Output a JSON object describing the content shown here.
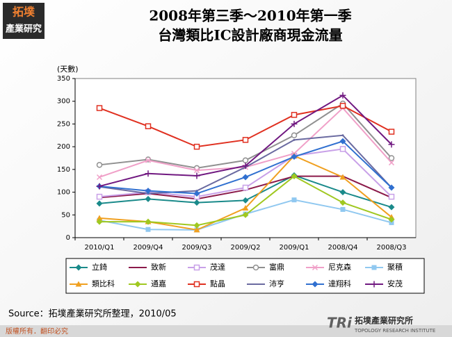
{
  "page": {
    "logo_top": "拓墣",
    "logo_bottom": "產業研究",
    "source": "Source：拓墣產業研究所整理，2010/05",
    "footer": "版權所有．翻印必究",
    "brand_mark": "TRi",
    "brand": "拓墣產業研究所",
    "brand_en": "TOPOLOGY RESEARCH INSTITUTE"
  },
  "chart_data": {
    "type": "line",
    "title": "2008年第三季～2010年第一季",
    "subtitle": "台灣類比IC設計廠商現金流量",
    "y_label": "(天數)",
    "categories": [
      "2010/Q1",
      "2009/Q4",
      "2009/Q3",
      "2009/Q2",
      "2009/Q1",
      "2008/Q4",
      "2008/Q3"
    ],
    "ylim": [
      0,
      350
    ],
    "yticks": [
      0,
      50,
      100,
      150,
      200,
      250,
      300,
      350
    ],
    "series": [
      {
        "name": "立錡",
        "color": "#1a8a8a",
        "marker": "diamond",
        "values": [
          75,
          85,
          77,
          82,
          137,
          100,
          67
        ]
      },
      {
        "name": "致新",
        "color": "#8b1a4a",
        "marker": "none",
        "values": [
          88,
          97,
          85,
          105,
          135,
          135,
          88
        ]
      },
      {
        "name": "茂達",
        "color": "#c8a0e8",
        "marker": "square-open",
        "values": [
          90,
          100,
          90,
          110,
          180,
          195,
          90
        ]
      },
      {
        "name": "富鼎",
        "color": "#909090",
        "marker": "circle-open",
        "values": [
          160,
          172,
          153,
          170,
          225,
          295,
          175
        ]
      },
      {
        "name": "尼克森",
        "color": "#f0a0c8",
        "marker": "x",
        "values": [
          133,
          170,
          148,
          155,
          185,
          285,
          165
        ]
      },
      {
        "name": "聚積",
        "color": "#90c8f0",
        "marker": "square",
        "values": [
          38,
          18,
          17,
          52,
          83,
          62,
          33
        ]
      },
      {
        "name": "類比科",
        "color": "#f0a020",
        "marker": "triangle",
        "values": [
          43,
          35,
          17,
          65,
          180,
          133,
          45
        ]
      },
      {
        "name": "通嘉",
        "color": "#a0c820",
        "marker": "diamond",
        "values": [
          35,
          35,
          27,
          50,
          135,
          77,
          40
        ]
      },
      {
        "name": "點晶",
        "color": "#e03020",
        "marker": "square-open",
        "values": [
          285,
          245,
          200,
          215,
          270,
          290,
          233
        ]
      },
      {
        "name": "沛亨",
        "color": "#6a6aa0",
        "marker": "none",
        "values": [
          112,
          97,
          103,
          155,
          215,
          225,
          110
        ]
      },
      {
        "name": "達翔科",
        "color": "#3070d0",
        "marker": "diamond",
        "values": [
          113,
          103,
          97,
          133,
          178,
          212,
          110
        ]
      },
      {
        "name": "安茂",
        "color": "#701880",
        "marker": "plus",
        "values": [
          113,
          141,
          136,
          158,
          250,
          313,
          205
        ]
      }
    ]
  }
}
